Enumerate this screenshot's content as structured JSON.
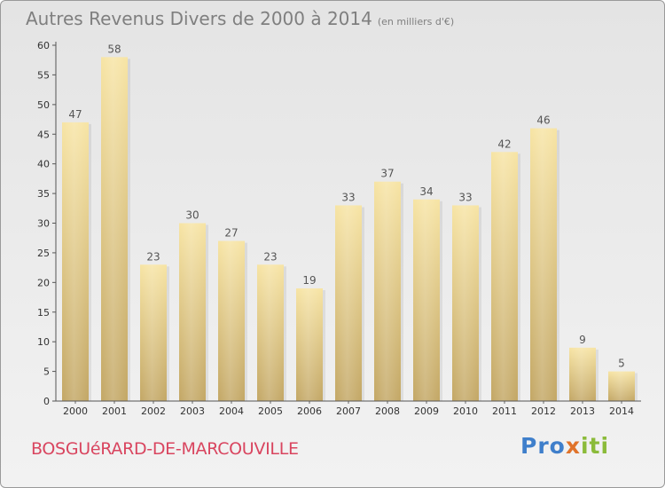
{
  "header": {
    "title": "Autres Revenus Divers de 2000 à 2014",
    "unit": "(en milliers d'€)"
  },
  "footer": {
    "commune": "BOSGUéRARD-DE-MARCOUVILLE",
    "logo": "Proxiti"
  },
  "colors": {
    "bar_top": "#f7e4a4",
    "bar_bottom": "#c3a765",
    "title": "#7f7f7f",
    "commune": "#d9455f",
    "logo_blue": "#3f7fcb",
    "logo_orange": "#e0732a",
    "logo_green": "#8bbb3a"
  },
  "chart_data": {
    "type": "bar",
    "title": "Autres Revenus Divers de 2000 à 2014",
    "subtitle": "(en milliers d'€)",
    "categories": [
      "2000",
      "2001",
      "2002",
      "2003",
      "2004",
      "2005",
      "2006",
      "2007",
      "2008",
      "2009",
      "2010",
      "2011",
      "2012",
      "2013",
      "2014"
    ],
    "values": [
      47,
      58,
      23,
      30,
      27,
      23,
      19,
      33,
      37,
      34,
      33,
      42,
      46,
      9,
      5
    ],
    "ylim": [
      0,
      60
    ],
    "yticks": [
      0,
      5,
      10,
      15,
      20,
      25,
      30,
      35,
      40,
      45,
      50,
      55,
      60
    ],
    "grid": false,
    "data_labels": true
  }
}
